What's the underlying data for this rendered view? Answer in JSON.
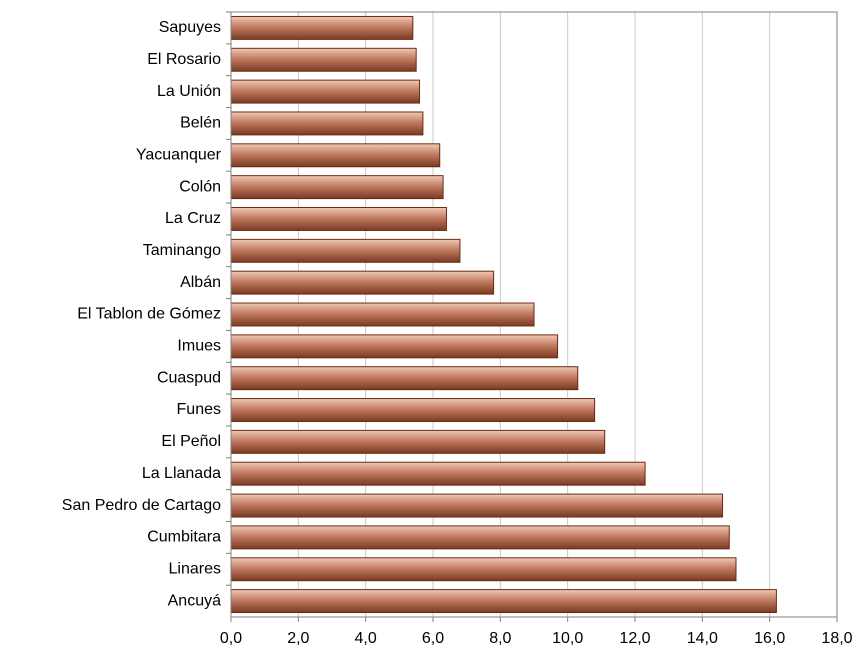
{
  "chart_data": {
    "type": "bar",
    "orientation": "horizontal",
    "title": "",
    "xlabel": "",
    "ylabel": "",
    "categories": [
      "Sapuyes",
      "El Rosario",
      "La Unión",
      "Belén",
      "Yacuanquer",
      "Colón",
      "La Cruz",
      "Taminango",
      "Albán",
      "El Tablon de Gómez",
      "Imues",
      "Cuaspud",
      "Funes",
      "El Peñol",
      "La Llanada",
      "San Pedro de Cartago",
      "Cumbitara",
      "Linares",
      "Ancuyá"
    ],
    "values": [
      5.4,
      5.5,
      5.6,
      5.7,
      6.2,
      6.3,
      6.4,
      6.8,
      7.8,
      9.0,
      9.7,
      10.3,
      10.8,
      11.1,
      12.3,
      14.6,
      14.8,
      15.0,
      16.2
    ],
    "xlim": [
      0,
      18
    ],
    "xticks": [
      0,
      2,
      4,
      6,
      8,
      10,
      12,
      14,
      16,
      18
    ],
    "xtick_labels": [
      "0,0",
      "2,0",
      "4,0",
      "6,0",
      "8,0",
      "10,0",
      "12,0",
      "14,0",
      "16,0",
      "18,0"
    ],
    "grid": "vertical",
    "legend": "none",
    "colors": {
      "bar_light": "#f1c9b8",
      "bar_mid": "#c27c62",
      "bar_dark": "#7a3a22",
      "bar_edge": "#6b2a12",
      "grid": "#c8c8c8",
      "axis": "#808080"
    }
  }
}
